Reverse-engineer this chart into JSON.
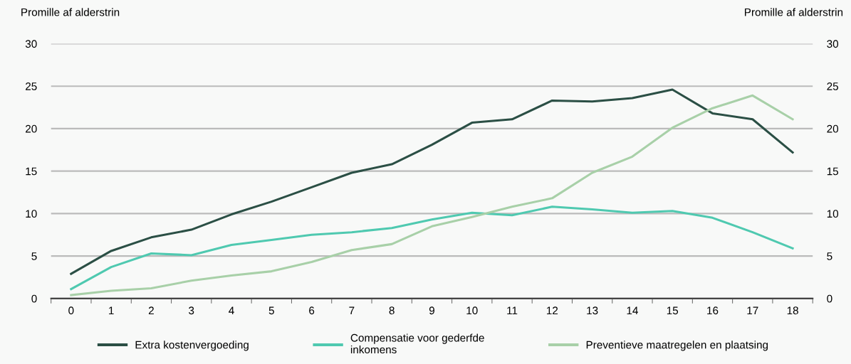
{
  "chart_data": {
    "type": "line",
    "ylabel": "Promille af alderstrin",
    "y2label": "Promille af alderstrin",
    "categories": [
      "0",
      "1",
      "2",
      "3",
      "4",
      "5",
      "6",
      "7",
      "8",
      "9",
      "10",
      "11",
      "12",
      "13",
      "14",
      "15",
      "16",
      "17",
      "18"
    ],
    "series": [
      {
        "name": "Extra kostenvergoeding",
        "color": "#2b4f45",
        "values": [
          2.9,
          5.6,
          7.2,
          8.1,
          9.9,
          11.4,
          13.1,
          14.8,
          15.8,
          18.1,
          20.7,
          21.1,
          23.3,
          23.2,
          23.6,
          24.6,
          21.8,
          21.1,
          17.2
        ]
      },
      {
        "name": "Compensatie voor gederfde\ninkomens",
        "color": "#4fc9b0",
        "values": [
          1.1,
          3.7,
          5.3,
          5.1,
          6.3,
          6.9,
          7.5,
          7.8,
          8.3,
          9.3,
          10.1,
          9.8,
          10.8,
          10.5,
          10.1,
          10.3,
          9.5,
          7.8,
          5.9
        ]
      },
      {
        "name": "Preventieve maatregelen en plaatsing",
        "color": "#a8d0a8",
        "values": [
          0.4,
          0.9,
          1.2,
          2.1,
          2.7,
          3.2,
          4.3,
          5.7,
          6.4,
          8.5,
          9.6,
          10.8,
          11.8,
          14.8,
          16.7,
          20.1,
          22.4,
          23.9,
          21.1
        ]
      }
    ],
    "ylim": [
      0,
      30
    ],
    "yticks": [
      0,
      5,
      10,
      15,
      20,
      25,
      30
    ],
    "y2lim": [
      0,
      30
    ],
    "y2ticks": [
      0,
      5,
      10,
      15,
      20,
      25,
      30
    ],
    "grid": "y",
    "legend": "bottom",
    "marker": "none",
    "line_style": "solid"
  }
}
